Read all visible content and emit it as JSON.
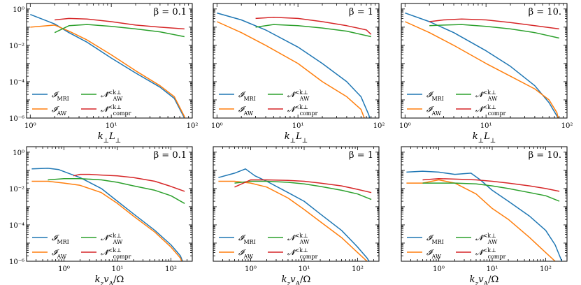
{
  "chart_data": [
    {
      "type": "line",
      "panel": "top-left",
      "title": "β = 0.1",
      "xlabel": "k⊥L⊥",
      "ylabel": "",
      "xscale": "log",
      "yscale": "log",
      "xlim": [
        0.9,
        100
      ],
      "ylim": [
        1e-06,
        2
      ],
      "x_ticks": [
        "10⁰",
        "10¹",
        "10²"
      ],
      "y_ticks": [
        "10⁰",
        "10⁻²",
        "10⁻⁴",
        "10⁻⁶"
      ],
      "legend": [
        "I_MRI",
        "I_AW",
        "N_AW^<k⊥",
        "N_compr^<k⊥"
      ],
      "legend_position": "lower-left",
      "series": [
        {
          "name": "I_MRI",
          "color": "#1f77b4",
          "x": [
            1,
            2,
            3,
            5,
            10,
            20,
            40,
            60,
            80,
            85
          ],
          "y": [
            0.5,
            0.15,
            0.05,
            0.015,
            0.002,
            0.0003,
            5e-05,
            1.2e-05,
            1e-06,
            4e-07
          ]
        },
        {
          "name": "I_AW",
          "color": "#ff7f0e",
          "x": [
            1,
            2,
            3,
            5,
            10,
            20,
            40,
            60,
            80,
            82
          ],
          "y": [
            0.1,
            0.13,
            0.06,
            0.02,
            0.003,
            0.0004,
            6e-05,
            1.5e-05,
            1.2e-06,
            5e-07
          ]
        },
        {
          "name": "N_AW^<k⊥",
          "color": "#2ca02c",
          "x": [
            2,
            3,
            5,
            10,
            20,
            40,
            80
          ],
          "y": [
            0.05,
            0.12,
            0.14,
            0.11,
            0.08,
            0.055,
            0.03
          ]
        },
        {
          "name": "N_compr^<k⊥",
          "color": "#d62728",
          "x": [
            2,
            3,
            5,
            10,
            20,
            40,
            80
          ],
          "y": [
            0.25,
            0.3,
            0.28,
            0.2,
            0.13,
            0.1,
            0.08
          ]
        }
      ]
    },
    {
      "type": "line",
      "panel": "top-middle",
      "title": "β = 1",
      "xlabel": "k⊥L⊥",
      "ylabel": "",
      "xscale": "log",
      "yscale": "log",
      "xlim": [
        0.9,
        100
      ],
      "ylim": [
        1e-06,
        2
      ],
      "x_ticks": [
        "10⁰",
        "10¹",
        "10²"
      ],
      "y_ticks": [],
      "legend": [
        "I_MRI",
        "I_AW",
        "N_AW^<k⊥",
        "N_compr^<k⊥"
      ],
      "legend_position": "lower-left",
      "series": [
        {
          "name": "I_MRI",
          "color": "#1f77b4",
          "x": [
            1,
            2,
            4,
            10,
            20,
            40,
            60,
            75,
            80
          ],
          "y": [
            0.6,
            0.25,
            0.07,
            0.008,
            0.001,
            0.0001,
            1.5e-05,
            1.5e-06,
            5e-07
          ]
        },
        {
          "name": "I_AW",
          "color": "#ff7f0e",
          "x": [
            1,
            2,
            4,
            10,
            20,
            40,
            60,
            70
          ],
          "y": [
            0.2,
            0.05,
            0.01,
            0.001,
            0.0001,
            1.5e-05,
            3e-06,
            5e-07
          ]
        },
        {
          "name": "N_AW^<k⊥",
          "color": "#2ca02c",
          "x": [
            3,
            5,
            10,
            20,
            40,
            80
          ],
          "y": [
            0.1,
            0.14,
            0.12,
            0.09,
            0.06,
            0.03
          ]
        },
        {
          "name": "N_compr^<k⊥",
          "color": "#d62728",
          "x": [
            3,
            5,
            10,
            20,
            40,
            70,
            80
          ],
          "y": [
            0.3,
            0.35,
            0.3,
            0.2,
            0.12,
            0.07,
            0.04
          ]
        }
      ]
    },
    {
      "type": "line",
      "panel": "top-right",
      "title": "β = 10.",
      "xlabel": "k⊥L⊥",
      "ylabel": "",
      "xscale": "log",
      "yscale": "log",
      "xlim": [
        0.9,
        100
      ],
      "ylim": [
        1e-06,
        2
      ],
      "x_ticks": [
        "10⁰",
        "10¹",
        "10²"
      ],
      "y_ticks": [],
      "legend": [
        "I_MRI",
        "I_AW",
        "N_AW^<k⊥",
        "N_compr^<k⊥"
      ],
      "legend_position": "lower-left",
      "series": [
        {
          "name": "I_MRI",
          "color": "#1f77b4",
          "x": [
            1,
            2,
            4,
            10,
            20,
            40,
            60,
            80,
            85
          ],
          "y": [
            0.6,
            0.2,
            0.05,
            0.005,
            0.0007,
            6e-05,
            7e-06,
            8e-07,
            4e-07
          ]
        },
        {
          "name": "I_AW",
          "color": "#ff7f0e",
          "x": [
            1,
            2,
            4,
            10,
            20,
            40,
            60,
            75,
            80
          ],
          "y": [
            0.2,
            0.05,
            0.01,
            0.001,
            0.0002,
            4e-05,
            1e-05,
            2e-06,
            6e-07
          ]
        },
        {
          "name": "N_AW^<k⊥",
          "color": "#2ca02c",
          "x": [
            2,
            3,
            5,
            10,
            20,
            40,
            80
          ],
          "y": [
            0.12,
            0.13,
            0.14,
            0.11,
            0.08,
            0.05,
            0.025
          ]
        },
        {
          "name": "N_compr^<k⊥",
          "color": "#d62728",
          "x": [
            2,
            3,
            5,
            10,
            20,
            40,
            80
          ],
          "y": [
            0.2,
            0.25,
            0.28,
            0.25,
            0.18,
            0.12,
            0.08
          ]
        }
      ]
    },
    {
      "type": "line",
      "panel": "bottom-left",
      "title": "β = 0.1",
      "xlabel": "kzvA/Ω",
      "ylabel": "",
      "xscale": "log",
      "yscale": "log",
      "xlim": [
        0.2,
        250
      ],
      "ylim": [
        1e-06,
        2
      ],
      "x_ticks": [
        "10⁰",
        "10¹",
        "10²"
      ],
      "y_ticks": [
        "10⁰",
        "10⁻²",
        "10⁻⁴",
        "10⁻⁶"
      ],
      "legend": [
        "I_MRI",
        "I_AW",
        "N_AW^<k⊥",
        "N_compr^<k⊥"
      ],
      "legend_position": "lower-left",
      "series": [
        {
          "name": "I_MRI",
          "color": "#1f77b4",
          "x": [
            0.25,
            0.5,
            0.8,
            1.2,
            2,
            5,
            10,
            20,
            50,
            100,
            150,
            180
          ],
          "y": [
            0.12,
            0.13,
            0.11,
            0.07,
            0.04,
            0.01,
            0.002,
            0.0004,
            5e-05,
            8e-06,
            2e-06,
            5e-07
          ]
        },
        {
          "name": "I_AW",
          "color": "#ff7f0e",
          "x": [
            0.25,
            0.5,
            1,
            2,
            5,
            10,
            20,
            50,
            100,
            150,
            180
          ],
          "y": [
            0.025,
            0.025,
            0.02,
            0.015,
            0.006,
            0.0015,
            0.0003,
            4e-05,
            6e-06,
            1.5e-06,
            4e-07
          ]
        },
        {
          "name": "N_AW^<k⊥",
          "color": "#2ca02c",
          "x": [
            0.5,
            1,
            2,
            5,
            10,
            20,
            50,
            100,
            180
          ],
          "y": [
            0.03,
            0.035,
            0.035,
            0.03,
            0.022,
            0.014,
            0.008,
            0.004,
            0.0015
          ]
        },
        {
          "name": "N_compr^<k⊥",
          "color": "#d62728",
          "x": [
            1.5,
            2,
            3,
            5,
            10,
            20,
            50,
            100,
            180
          ],
          "y": [
            0.05,
            0.06,
            0.06,
            0.055,
            0.05,
            0.04,
            0.025,
            0.013,
            0.007
          ]
        }
      ]
    },
    {
      "type": "line",
      "panel": "bottom-middle",
      "title": "β = 1",
      "xlabel": "kzvA/Ω",
      "ylabel": "",
      "xscale": "log",
      "yscale": "log",
      "xlim": [
        0.2,
        250
      ],
      "ylim": [
        1e-06,
        2
      ],
      "x_ticks": [
        "10⁰",
        "10¹",
        "10²"
      ],
      "y_ticks": [],
      "legend": [
        "I_MRI",
        "I_AW",
        "N_AW^<k⊥",
        "N_compr^<k⊥"
      ],
      "legend_position": "lower-left",
      "series": [
        {
          "name": "I_MRI",
          "color": "#1f77b4",
          "x": [
            0.25,
            0.5,
            0.8,
            1.2,
            2,
            5,
            10,
            20,
            50,
            100,
            150,
            200
          ],
          "y": [
            0.04,
            0.07,
            0.12,
            0.05,
            0.025,
            0.006,
            0.002,
            0.0004,
            5e-05,
            6e-06,
            1.5e-06,
            4e-07
          ]
        },
        {
          "name": "I_AW",
          "color": "#ff7f0e",
          "x": [
            0.25,
            0.5,
            1,
            2,
            5,
            10,
            20,
            50,
            100,
            150,
            180
          ],
          "y": [
            0.025,
            0.025,
            0.02,
            0.012,
            0.003,
            0.0007,
            0.00015,
            2e-05,
            3e-06,
            1e-06,
            4e-07
          ]
        },
        {
          "name": "N_AW^<k⊥",
          "color": "#2ca02c",
          "x": [
            0.5,
            1,
            2,
            5,
            10,
            20,
            50,
            100,
            180
          ],
          "y": [
            0.02,
            0.025,
            0.025,
            0.022,
            0.018,
            0.013,
            0.008,
            0.005,
            0.0025
          ]
        },
        {
          "name": "N_compr^<k⊥",
          "color": "#d62728",
          "x": [
            0.5,
            1,
            2,
            5,
            10,
            20,
            50,
            100,
            180
          ],
          "y": [
            0.012,
            0.03,
            0.03,
            0.028,
            0.025,
            0.02,
            0.014,
            0.009,
            0.006
          ]
        }
      ]
    },
    {
      "type": "line",
      "panel": "bottom-right",
      "title": "β = 10.",
      "xlabel": "kzvA/Ω",
      "ylabel": "",
      "xscale": "log",
      "yscale": "log",
      "xlim": [
        0.2,
        250
      ],
      "ylim": [
        1e-06,
        2
      ],
      "x_ticks": [
        "10⁰",
        "10¹",
        "10²"
      ],
      "y_ticks": [],
      "legend": [
        "I_MRI",
        "I_AW",
        "N_AW^<k⊥",
        "N_compr^<k⊥"
      ],
      "legend_position": "lower-left",
      "series": [
        {
          "name": "I_MRI",
          "color": "#1f77b4",
          "x": [
            0.25,
            0.5,
            1,
            2,
            4,
            6,
            10,
            20,
            50,
            100,
            150,
            200
          ],
          "y": [
            0.08,
            0.09,
            0.08,
            0.06,
            0.07,
            0.03,
            0.008,
            0.002,
            0.0003,
            5e-05,
            8e-06,
            1e-06
          ]
        },
        {
          "name": "I_AW",
          "color": "#ff7f0e",
          "x": [
            0.25,
            0.5,
            1,
            2,
            5,
            10,
            20,
            50,
            100,
            150,
            180
          ],
          "y": [
            0.02,
            0.02,
            0.03,
            0.02,
            0.005,
            0.0008,
            0.0002,
            2e-05,
            3e-06,
            1e-06,
            4e-07
          ]
        },
        {
          "name": "N_AW^<k⊥",
          "color": "#2ca02c",
          "x": [
            0.5,
            1,
            2,
            5,
            10,
            20,
            50,
            100,
            180
          ],
          "y": [
            0.02,
            0.02,
            0.02,
            0.018,
            0.014,
            0.01,
            0.006,
            0.004,
            0.002
          ]
        },
        {
          "name": "N_compr^<k⊥",
          "color": "#d62728",
          "x": [
            0.5,
            1,
            2,
            5,
            10,
            20,
            50,
            100,
            180
          ],
          "y": [
            0.03,
            0.035,
            0.033,
            0.03,
            0.025,
            0.02,
            0.014,
            0.01,
            0.007
          ]
        }
      ]
    }
  ]
}
